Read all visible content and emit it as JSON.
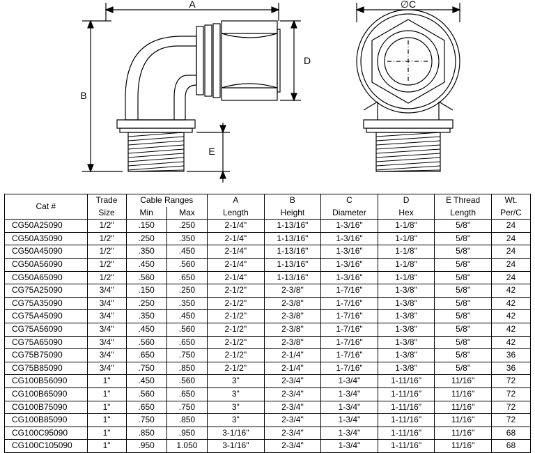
{
  "drawing": {
    "labels": {
      "A": "A",
      "B": "B",
      "C": "∅C",
      "D": "D",
      "E": "E"
    },
    "stroke": "#000000",
    "stroke_width": 1.2,
    "hatch_color": "#000000",
    "font_family": "Arial",
    "font_size": 14
  },
  "table": {
    "border_color": "#000000",
    "font_size": 12,
    "header": {
      "cat": "Cat #",
      "trade": "Trade",
      "trade2": "Size",
      "cable_ranges": "Cable Ranges",
      "min": "Min",
      "max": "Max",
      "a": "A",
      "a2": "Length",
      "b": "B",
      "b2": "Height",
      "c": "C",
      "c2": "Diameter",
      "d": "D",
      "d2": "Hex",
      "e": "E   Thread",
      "e2": "Length",
      "wt": "Wt.",
      "wt2": "Per/C"
    },
    "rows": [
      {
        "cat": "CG50A25090",
        "trade": "1/2\"",
        "min": ".150",
        "max": ".250",
        "a": "2-1/4\"",
        "b": "1-13/16\"",
        "c": "1-3/16\"",
        "d": "1-1/8\"",
        "e": "5/8\"",
        "wt": "24"
      },
      {
        "cat": "CG50A35090",
        "trade": "1/2\"",
        "min": ".250",
        "max": ".350",
        "a": "2-1/4\"",
        "b": "1-13/16\"",
        "c": "1-3/16\"",
        "d": "1-1/8\"",
        "e": "5/8\"",
        "wt": "24"
      },
      {
        "cat": "CG50A45090",
        "trade": "1/2\"",
        "min": ".350",
        "max": ".450",
        "a": "2-1/4\"",
        "b": "1-13/16\"",
        "c": "1-3/16\"",
        "d": "1-1/8\"",
        "e": "5/8\"",
        "wt": "24"
      },
      {
        "cat": "CG50A56090",
        "trade": "1/2\"",
        "min": ".450",
        "max": ".560",
        "a": "2-1/4\"",
        "b": "1-13/16\"",
        "c": "1-3/16\"",
        "d": "1-1/8\"",
        "e": "5/8\"",
        "wt": "24"
      },
      {
        "cat": "CG50A65090",
        "trade": "1/2\"",
        "min": ".560",
        "max": ".650",
        "a": "2-1/4\"",
        "b": "1-13/16\"",
        "c": "1-3/16\"",
        "d": "1-1/8\"",
        "e": "5/8\"",
        "wt": "24"
      },
      {
        "cat": "CG75A25090",
        "trade": "3/4\"",
        "min": ".150",
        "max": ".250",
        "a": "2-1/2\"",
        "b": "2-3/8\"",
        "c": "1-7/16\"",
        "d": "1-3/8\"",
        "e": "5/8\"",
        "wt": "42"
      },
      {
        "cat": "CG75A35090",
        "trade": "3/4\"",
        "min": ".250",
        "max": ".350",
        "a": "2-1/2\"",
        "b": "2-3/8\"",
        "c": "1-7/16\"",
        "d": "1-3/8\"",
        "e": "5/8\"",
        "wt": "42"
      },
      {
        "cat": "CG75A45090",
        "trade": "3/4\"",
        "min": ".350",
        "max": ".450",
        "a": "2-1/2\"",
        "b": "2-3/8\"",
        "c": "1-7/16\"",
        "d": "1-3/8\"",
        "e": "5/8\"",
        "wt": "42"
      },
      {
        "cat": "CG75A56090",
        "trade": "3/4\"",
        "min": ".450",
        "max": ".560",
        "a": "2-1/2\"",
        "b": "2-3/8\"",
        "c": "1-7/16\"",
        "d": "1-3/8\"",
        "e": "5/8\"",
        "wt": "42"
      },
      {
        "cat": "CG75A65090",
        "trade": "3/4\"",
        "min": ".560",
        "max": ".650",
        "a": "2-1/2\"",
        "b": "2-3/8\"",
        "c": "1-7/16\"",
        "d": "1-3/8\"",
        "e": "5/8\"",
        "wt": "42"
      },
      {
        "cat": "CG75B75090",
        "trade": "3/4\"",
        "min": ".650",
        "max": ".750",
        "a": "2-1/2\"",
        "b": "2-1/4\"",
        "c": "1-7/16\"",
        "d": "1-3/8\"",
        "e": "5/8\"",
        "wt": "36"
      },
      {
        "cat": "CG75B85090",
        "trade": "3/4\"",
        "min": ".750",
        "max": ".850",
        "a": "2-1/2\"",
        "b": "2-1/4\"",
        "c": "1-7/16\"",
        "d": "1-3/8\"",
        "e": "5/8\"",
        "wt": "36"
      },
      {
        "cat": "CG100B56090",
        "trade": "1\"",
        "min": ".450",
        "max": ".560",
        "a": "3\"",
        "b": "2-3/4\"",
        "c": "1-3/4\"",
        "d": "1-11/16\"",
        "e": "11/16\"",
        "wt": "72"
      },
      {
        "cat": "CG100B65090",
        "trade": "1\"",
        "min": ".560",
        "max": ".650",
        "a": "3\"",
        "b": "2-3/4\"",
        "c": "1-3/4\"",
        "d": "1-11/16\"",
        "e": "11/16\"",
        "wt": "72"
      },
      {
        "cat": "CG100B75090",
        "trade": "1\"",
        "min": ".650",
        "max": ".750",
        "a": "3\"",
        "b": "2-3/4\"",
        "c": "1-3/4\"",
        "d": "1-11/16\"",
        "e": "11/16\"",
        "wt": "72"
      },
      {
        "cat": "CG100B85090",
        "trade": "1\"",
        "min": ".750",
        "max": ".850",
        "a": "3\"",
        "b": "2-3/4\"",
        "c": "1-3/4\"",
        "d": "1-11/16\"",
        "e": "11/16\"",
        "wt": "72"
      },
      {
        "cat": "CG100C95090",
        "trade": "1\"",
        "min": ".850",
        "max": ".950",
        "a": "3-1/16\"",
        "b": "2-3/4\"",
        "c": "1-3/4\"",
        "d": "1-11/16\"",
        "e": "11/16\"",
        "wt": "68"
      },
      {
        "cat": "CG100C105090",
        "trade": "1\"",
        "min": ".950",
        "max": "1.050",
        "a": "3-1/16\"",
        "b": "2-3/4\"",
        "c": "1-3/4\"",
        "d": "1-11/16\"",
        "e": "11/16\"",
        "wt": "68"
      }
    ]
  }
}
